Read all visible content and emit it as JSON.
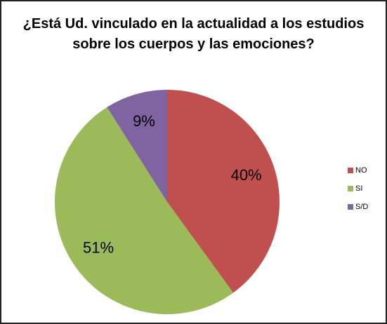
{
  "chart_data": {
    "type": "pie",
    "title": "¿Está Ud. vinculado en la actualidad a los estudios sobre los cuerpos y las emociones?",
    "categories": [
      "NO",
      "SI",
      "S/D"
    ],
    "values": [
      40,
      51,
      9
    ],
    "value_labels": [
      "40%",
      "51%",
      "9%"
    ],
    "colors": [
      "#c0504d",
      "#9bbb59",
      "#8064a2"
    ],
    "legend": "right"
  }
}
